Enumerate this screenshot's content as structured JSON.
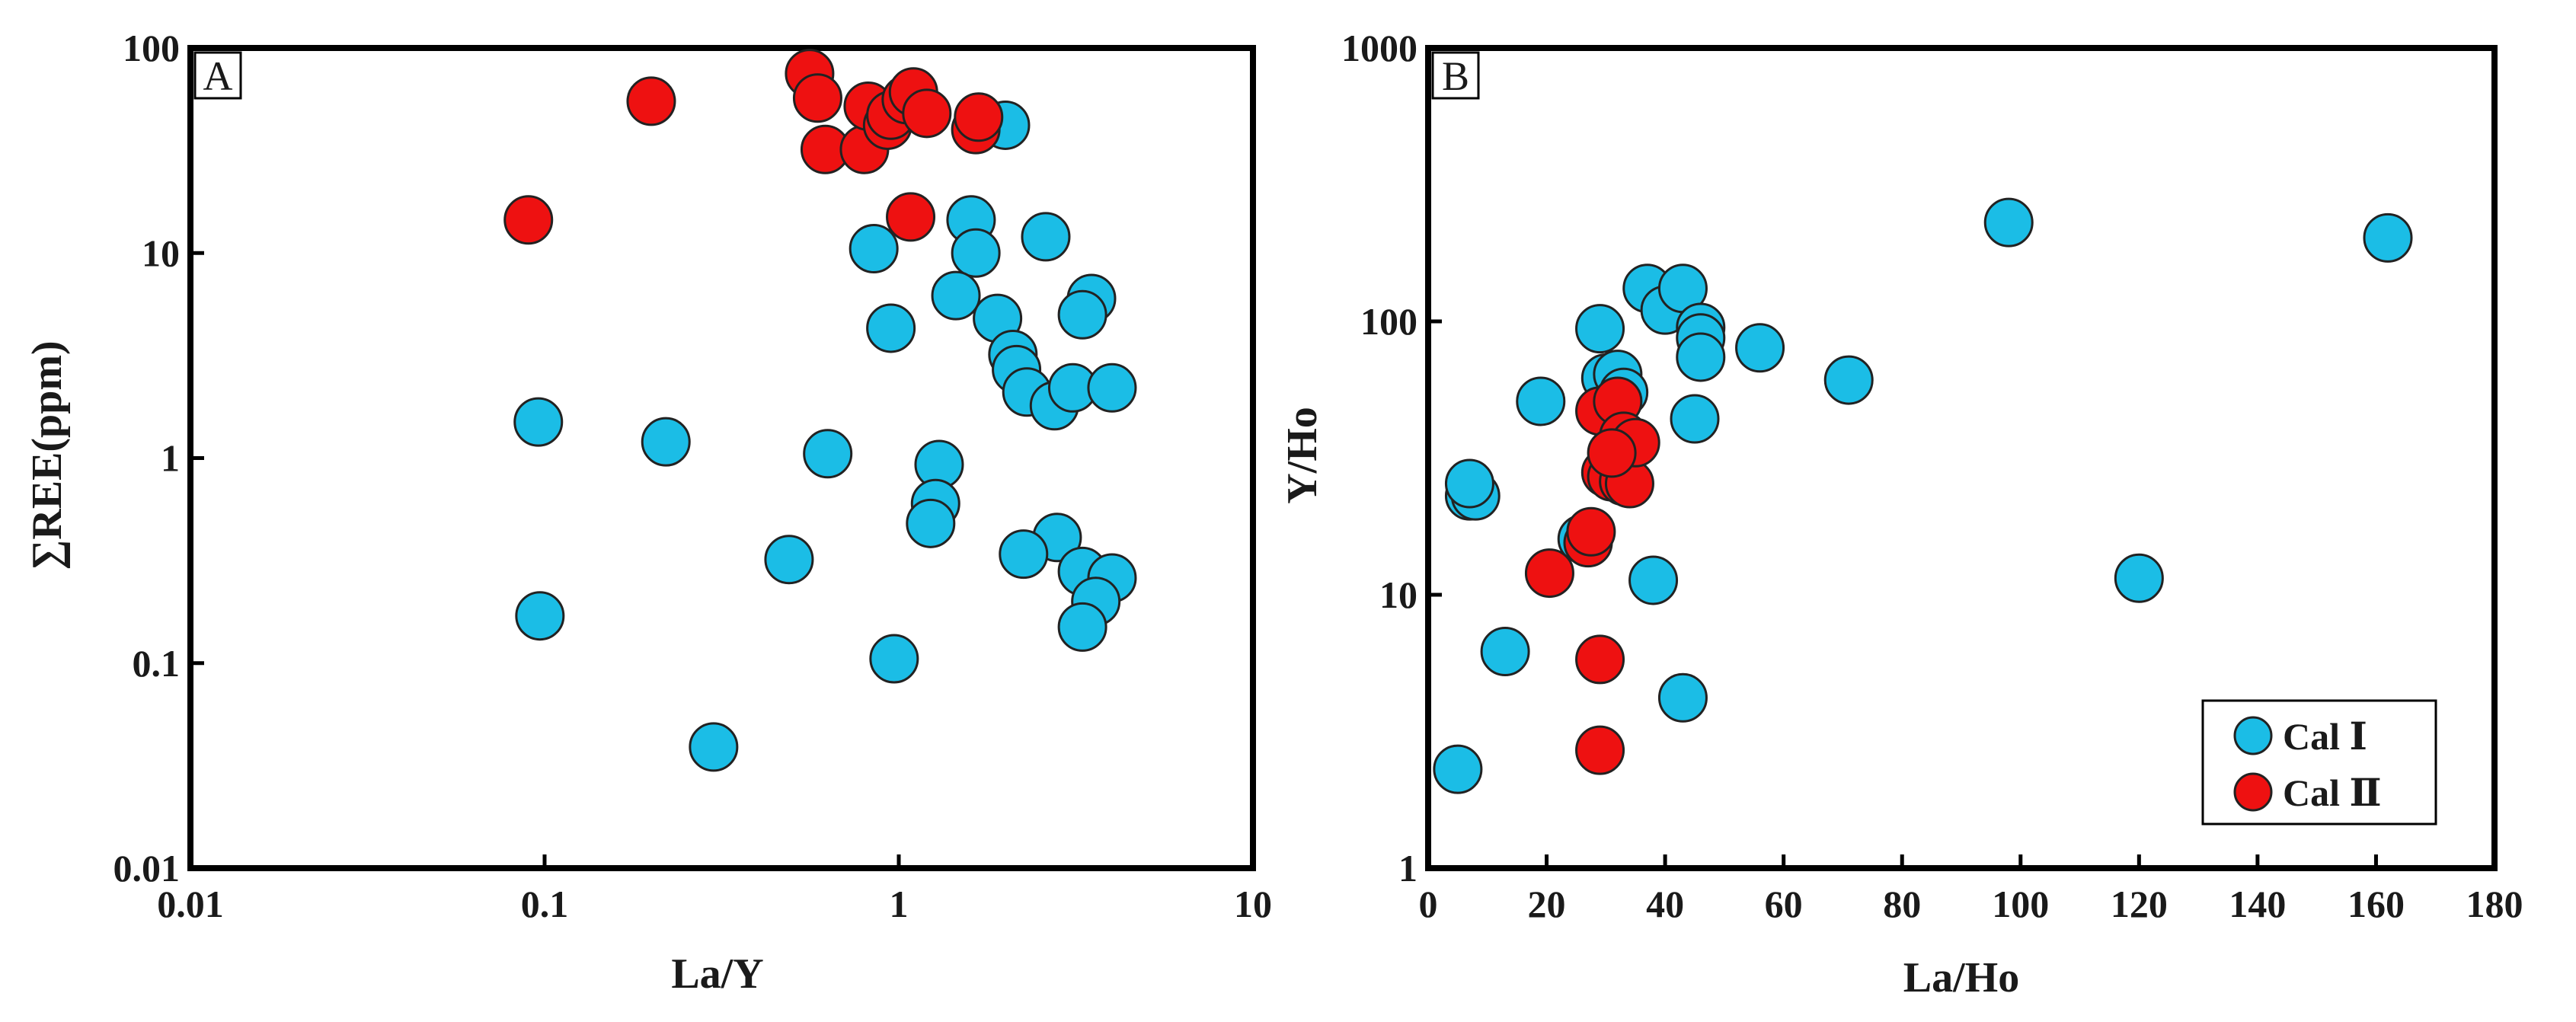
{
  "colors": {
    "cal1": "#1bbde6",
    "cal2": "#ee1111",
    "axis": "#000000"
  },
  "chart_data": [
    {
      "type": "scatter",
      "panel": "A",
      "xlabel": "La/Y",
      "ylabel": "∑REE(ppm)",
      "xscale": "log",
      "yscale": "log",
      "xlim": [
        0.01,
        10
      ],
      "ylim": [
        0.01,
        100
      ],
      "xticks": [
        0.01,
        0.1,
        1,
        10
      ],
      "xtick_labels": [
        "0.01",
        "0.1",
        "1",
        "10"
      ],
      "yticks": [
        0.01,
        0.1,
        1,
        10,
        100
      ],
      "ytick_labels": [
        "0.01",
        "0.1",
        "1",
        "10",
        "100"
      ],
      "grid": false,
      "series": [
        {
          "name": "Cal Ⅰ",
          "color": "#1bbde6",
          "points": [
            [
              2.0,
              42
            ],
            [
              1.6,
              14.5
            ],
            [
              1.65,
              10
            ],
            [
              0.85,
              10.5
            ],
            [
              2.6,
              12
            ],
            [
              1.45,
              6.2
            ],
            [
              1.9,
              4.8
            ],
            [
              3.5,
              6.0
            ],
            [
              3.3,
              5.0
            ],
            [
              0.95,
              4.3
            ],
            [
              2.1,
              3.2
            ],
            [
              2.15,
              2.7
            ],
            [
              2.3,
              2.1
            ],
            [
              2.75,
              1.8
            ],
            [
              3.1,
              2.2
            ],
            [
              4.0,
              2.2
            ],
            [
              0.096,
              1.5
            ],
            [
              0.22,
              1.2
            ],
            [
              0.63,
              1.05
            ],
            [
              1.3,
              0.93
            ],
            [
              1.27,
              0.6
            ],
            [
              1.23,
              0.48
            ],
            [
              2.8,
              0.41
            ],
            [
              2.25,
              0.34
            ],
            [
              3.3,
              0.28
            ],
            [
              4.0,
              0.26
            ],
            [
              3.6,
              0.2
            ],
            [
              3.3,
              0.15
            ],
            [
              0.49,
              0.32
            ],
            [
              0.097,
              0.17
            ],
            [
              0.97,
              0.105
            ],
            [
              0.3,
              0.039
            ]
          ]
        },
        {
          "name": "Cal Ⅱ",
          "color": "#ee1111",
          "points": [
            [
              0.09,
              14.5
            ],
            [
              0.2,
              55
            ],
            [
              0.56,
              75
            ],
            [
              0.59,
              57
            ],
            [
              0.62,
              32
            ],
            [
              0.8,
              32
            ],
            [
              0.82,
              52
            ],
            [
              0.93,
              42
            ],
            [
              0.95,
              47
            ],
            [
              1.05,
              56
            ],
            [
              1.1,
              61
            ],
            [
              1.2,
              48
            ],
            [
              1.65,
              40
            ],
            [
              1.68,
              46
            ],
            [
              1.08,
              15
            ]
          ]
        }
      ]
    },
    {
      "type": "scatter",
      "panel": "B",
      "xlabel": "La/Ho",
      "ylabel": "Y/Ho",
      "xscale": "linear",
      "yscale": "log",
      "xlim": [
        0,
        180
      ],
      "ylim": [
        1,
        1000
      ],
      "xticks": [
        0,
        20,
        40,
        60,
        80,
        100,
        120,
        140,
        160,
        180
      ],
      "xtick_labels": [
        "0",
        "20",
        "40",
        "60",
        "80",
        "100",
        "120",
        "140",
        "160",
        "180"
      ],
      "yticks": [
        1,
        10,
        100,
        1000
      ],
      "ytick_labels": [
        "1",
        "10",
        "100",
        "1000"
      ],
      "grid": false,
      "legend_position": "bottom-right",
      "series": [
        {
          "name": "Cal Ⅰ",
          "color": "#1bbde6",
          "points": [
            [
              5,
              2.3
            ],
            [
              13,
              6.2
            ],
            [
              7,
              23
            ],
            [
              8,
              23
            ],
            [
              7,
              25.5
            ],
            [
              19,
              51
            ],
            [
              26,
              16
            ],
            [
              29,
              94
            ],
            [
              30,
              62
            ],
            [
              32,
              64
            ],
            [
              33,
              55
            ],
            [
              37,
              132
            ],
            [
              40,
              110
            ],
            [
              43,
              132
            ],
            [
              46,
              95
            ],
            [
              46,
              87
            ],
            [
              46,
              74
            ],
            [
              45,
              44
            ],
            [
              56,
              80
            ],
            [
              71,
              61
            ],
            [
              98,
              230
            ],
            [
              120,
              11.5
            ],
            [
              162,
              202
            ],
            [
              38,
              11.3
            ],
            [
              43,
              4.2
            ]
          ]
        },
        {
          "name": "Cal Ⅱ",
          "color": "#ee1111",
          "points": [
            [
              20.5,
              12
            ],
            [
              27,
              15.5
            ],
            [
              27.5,
              17
            ],
            [
              29,
              47
            ],
            [
              32,
              51
            ],
            [
              30,
              28
            ],
            [
              31,
              27
            ],
            [
              33,
              26
            ],
            [
              34,
              25.5
            ],
            [
              33,
              38
            ],
            [
              35,
              36
            ],
            [
              31,
              33
            ],
            [
              29,
              5.8
            ],
            [
              29,
              2.7
            ]
          ]
        }
      ]
    }
  ],
  "legend": {
    "items": [
      "Cal Ⅰ",
      "Cal Ⅱ"
    ]
  }
}
